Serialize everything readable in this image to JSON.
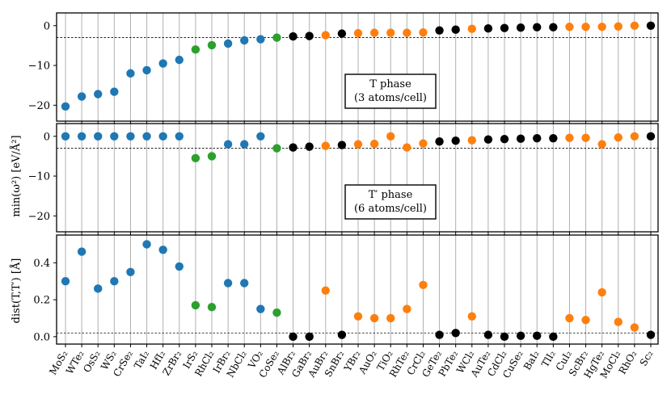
{
  "chart_data": {
    "type": "scatter",
    "categories": [
      "MoS₂",
      "WTe₂",
      "OsS₂",
      "WS₂",
      "CrSe₂",
      "TaI₂",
      "HfI₂",
      "ZrBr₂",
      "IrS₂",
      "RhCl₂",
      "IrBr₂",
      "NbCl₂",
      "VO₂",
      "CoSe₂",
      "AlBr₂",
      "GaBr₂",
      "AuBr₂",
      "SnBr₂",
      "YBr₂",
      "AuO₂",
      "TiO₂",
      "RhTe₂",
      "CrCl₂",
      "GeTe₂",
      "PbTe₂",
      "WCl₂",
      "AuTe₂",
      "CdCl₂",
      "CuSe₂",
      "BaI₂",
      "TlI₂",
      "CuI₂",
      "ScBr₂",
      "HgTe₂",
      "MoCl₂",
      "RhO₂",
      "Sc₂"
    ],
    "group_colors": {
      "blue": "#1f77b4",
      "green": "#2ca02c",
      "black": "#000000",
      "orange": "#ff7f0e"
    },
    "point_colors": [
      "blue",
      "blue",
      "blue",
      "blue",
      "blue",
      "blue",
      "blue",
      "blue",
      "green",
      "green",
      "blue",
      "blue",
      "blue",
      "green",
      "black",
      "black",
      "orange",
      "black",
      "orange",
      "orange",
      "orange",
      "orange",
      "orange",
      "black",
      "black",
      "orange",
      "black",
      "black",
      "black",
      "black",
      "black",
      "orange",
      "orange",
      "orange",
      "orange",
      "orange",
      "black"
    ],
    "panels": [
      {
        "name": "T phase",
        "ylim": [
          -24,
          3.2
        ],
        "yticks": [
          0,
          -10,
          -20
        ],
        "ytick_labels": [
          "0",
          "−10",
          "−20"
        ],
        "reference_line": -3,
        "annotation": [
          "T phase",
          "(3 atoms/cell)"
        ],
        "values": [
          -20.3,
          -17.8,
          -17.2,
          -16.6,
          -12,
          -11.2,
          -9.5,
          -8.6,
          -6,
          -4.9,
          -4.5,
          -3.7,
          -3.4,
          -3,
          -2.7,
          -2.6,
          -2.4,
          -2,
          -1.9,
          -1.8,
          -1.8,
          -1.8,
          -1.7,
          -1.2,
          -1,
          -0.8,
          -0.7,
          -0.6,
          -0.5,
          -0.4,
          -0.4,
          -0.3,
          -0.3,
          -0.3,
          -0.2,
          0,
          0
        ]
      },
      {
        "name": "T′ phase",
        "ylim": [
          -24,
          3.2
        ],
        "yticks": [
          0,
          -10,
          -20
        ],
        "ytick_labels": [
          "0",
          "−10",
          "−20"
        ],
        "reference_line": -3,
        "annotation": [
          "T′ phase",
          "(6 atoms/cell)"
        ],
        "values": [
          0,
          0,
          0,
          0,
          0,
          0,
          0,
          0,
          -5.5,
          -5,
          -2,
          -2,
          0,
          -3,
          -2.8,
          -2.6,
          -2.4,
          -2.2,
          -2,
          -1.9,
          0,
          -2.8,
          -1.8,
          -1.3,
          -1.1,
          -1,
          -0.8,
          -0.7,
          -0.6,
          -0.5,
          -0.5,
          -0.4,
          -0.4,
          -2,
          -0.3,
          0,
          0
        ]
      },
      {
        "name": "dist",
        "ylim": [
          -0.04,
          0.55
        ],
        "yticks": [
          0,
          0.2,
          0.4
        ],
        "ytick_labels": [
          "0.0",
          "0.2",
          "0.4"
        ],
        "reference_line": 0.02,
        "values": [
          0.3,
          0.46,
          0.26,
          0.3,
          0.35,
          0.5,
          0.47,
          0.38,
          0.17,
          0.16,
          0.29,
          0.29,
          0.15,
          0.13,
          0,
          0,
          0.25,
          0.01,
          0.11,
          0.1,
          0.1,
          0.15,
          0.28,
          0.01,
          0.02,
          0.11,
          0.01,
          0,
          0.005,
          0.005,
          0,
          0.1,
          0.09,
          0.24,
          0.08,
          0.05,
          0.01
        ]
      }
    ],
    "ylabel_energy": "min(ω²) [eV/Å²]",
    "ylabel_dist": "dist(T,T′) [Å]"
  }
}
